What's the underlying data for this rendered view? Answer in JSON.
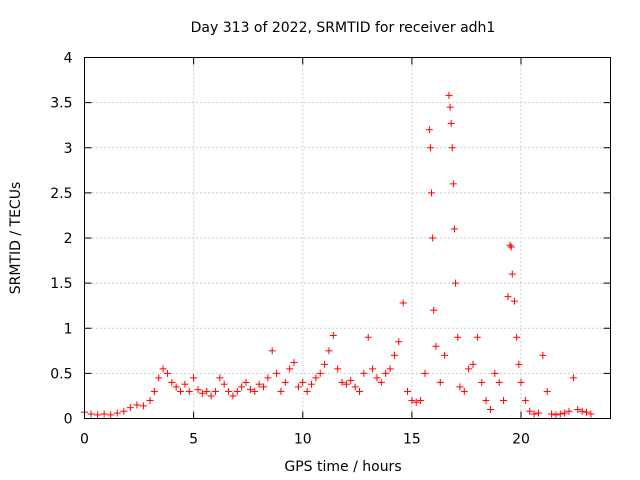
{
  "chart_data": {
    "type": "scatter",
    "title": "Day 313 of 2022, SRMTID for receiver adh1",
    "xlabel": "GPS time / hours",
    "ylabel": "SRMTID / TECUs",
    "xlim": [
      0,
      24.1
    ],
    "ylim": [
      0,
      4
    ],
    "grid": true,
    "marker": "+",
    "xticks": [
      "0",
      "5",
      "10",
      "15",
      "20"
    ],
    "yticks": [
      "0",
      "0.5",
      "1",
      "1.5",
      "2",
      "2.5",
      "3",
      "3.5",
      "4"
    ],
    "series_color": "#ff0000",
    "series": [
      {
        "name": "adh1",
        "points": [
          [
            0.0,
            0.07
          ],
          [
            0.3,
            0.05
          ],
          [
            0.6,
            0.04
          ],
          [
            0.9,
            0.05
          ],
          [
            1.2,
            0.04
          ],
          [
            1.5,
            0.06
          ],
          [
            1.8,
            0.08
          ],
          [
            2.1,
            0.12
          ],
          [
            2.4,
            0.15
          ],
          [
            2.7,
            0.14
          ],
          [
            3.0,
            0.2
          ],
          [
            3.2,
            0.3
          ],
          [
            3.4,
            0.45
          ],
          [
            3.6,
            0.55
          ],
          [
            3.8,
            0.5
          ],
          [
            4.0,
            0.4
          ],
          [
            4.2,
            0.35
          ],
          [
            4.4,
            0.3
          ],
          [
            4.6,
            0.38
          ],
          [
            4.8,
            0.3
          ],
          [
            5.0,
            0.45
          ],
          [
            5.2,
            0.32
          ],
          [
            5.4,
            0.28
          ],
          [
            5.6,
            0.3
          ],
          [
            5.8,
            0.25
          ],
          [
            6.0,
            0.3
          ],
          [
            6.2,
            0.45
          ],
          [
            6.4,
            0.38
          ],
          [
            6.6,
            0.3
          ],
          [
            6.8,
            0.25
          ],
          [
            7.0,
            0.3
          ],
          [
            7.2,
            0.35
          ],
          [
            7.4,
            0.4
          ],
          [
            7.6,
            0.32
          ],
          [
            7.8,
            0.3
          ],
          [
            8.0,
            0.38
          ],
          [
            8.2,
            0.35
          ],
          [
            8.4,
            0.45
          ],
          [
            8.6,
            0.75
          ],
          [
            8.8,
            0.5
          ],
          [
            9.0,
            0.3
          ],
          [
            9.2,
            0.4
          ],
          [
            9.4,
            0.55
          ],
          [
            9.6,
            0.62
          ],
          [
            9.8,
            0.35
          ],
          [
            10.0,
            0.4
          ],
          [
            10.2,
            0.3
          ],
          [
            10.4,
            0.38
          ],
          [
            10.6,
            0.45
          ],
          [
            10.8,
            0.5
          ],
          [
            11.0,
            0.6
          ],
          [
            11.2,
            0.75
          ],
          [
            11.4,
            0.92
          ],
          [
            11.6,
            0.55
          ],
          [
            11.8,
            0.4
          ],
          [
            12.0,
            0.38
          ],
          [
            12.2,
            0.42
          ],
          [
            12.4,
            0.35
          ],
          [
            12.6,
            0.3
          ],
          [
            12.8,
            0.5
          ],
          [
            13.0,
            0.9
          ],
          [
            13.2,
            0.55
          ],
          [
            13.4,
            0.45
          ],
          [
            13.6,
            0.4
          ],
          [
            13.8,
            0.5
          ],
          [
            14.0,
            0.55
          ],
          [
            14.2,
            0.7
          ],
          [
            14.4,
            0.85
          ],
          [
            14.6,
            1.28
          ],
          [
            14.8,
            0.3
          ],
          [
            15.0,
            0.2
          ],
          [
            15.2,
            0.18
          ],
          [
            15.4,
            0.2
          ],
          [
            15.6,
            0.5
          ],
          [
            15.8,
            3.2
          ],
          [
            15.85,
            3.0
          ],
          [
            15.9,
            2.5
          ],
          [
            15.95,
            2.0
          ],
          [
            16.0,
            1.2
          ],
          [
            16.1,
            0.8
          ],
          [
            16.3,
            0.4
          ],
          [
            16.5,
            0.7
          ],
          [
            16.7,
            3.58
          ],
          [
            16.75,
            3.45
          ],
          [
            16.8,
            3.27
          ],
          [
            16.85,
            3.0
          ],
          [
            16.9,
            2.6
          ],
          [
            16.95,
            2.1
          ],
          [
            17.0,
            1.5
          ],
          [
            17.1,
            0.9
          ],
          [
            17.2,
            0.35
          ],
          [
            17.4,
            0.3
          ],
          [
            17.6,
            0.55
          ],
          [
            17.8,
            0.6
          ],
          [
            18.0,
            0.9
          ],
          [
            18.2,
            0.4
          ],
          [
            18.4,
            0.2
          ],
          [
            18.6,
            0.1
          ],
          [
            18.8,
            0.5
          ],
          [
            19.0,
            0.4
          ],
          [
            19.2,
            0.2
          ],
          [
            19.4,
            1.35
          ],
          [
            19.5,
            1.92
          ],
          [
            19.55,
            1.9
          ],
          [
            19.6,
            1.6
          ],
          [
            19.7,
            1.3
          ],
          [
            19.8,
            0.9
          ],
          [
            19.9,
            0.6
          ],
          [
            20.0,
            0.4
          ],
          [
            20.2,
            0.2
          ],
          [
            20.4,
            0.08
          ],
          [
            20.6,
            0.05
          ],
          [
            20.8,
            0.06
          ],
          [
            21.0,
            0.7
          ],
          [
            21.2,
            0.3
          ],
          [
            21.4,
            0.05
          ],
          [
            21.6,
            0.04
          ],
          [
            21.8,
            0.05
          ],
          [
            22.0,
            0.06
          ],
          [
            22.2,
            0.08
          ],
          [
            22.4,
            0.45
          ],
          [
            22.6,
            0.1
          ],
          [
            22.8,
            0.08
          ],
          [
            23.0,
            0.07
          ],
          [
            23.2,
            0.05
          ]
        ]
      }
    ]
  }
}
